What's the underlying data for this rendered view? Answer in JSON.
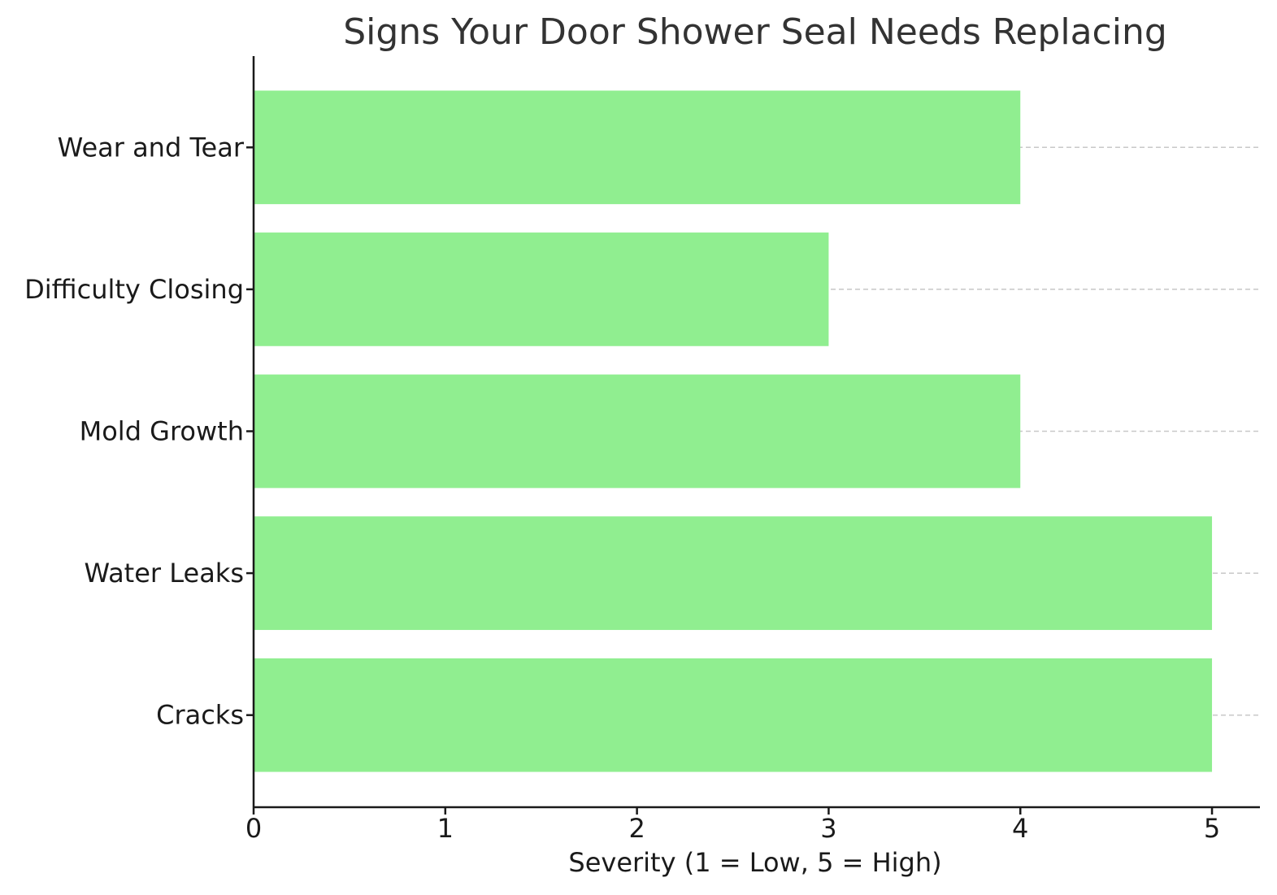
{
  "chart_data": {
    "type": "bar",
    "orientation": "horizontal",
    "title": "Signs Your Door Shower Seal Needs Replacing",
    "xlabel": "Severity (1 = Low, 5 = High)",
    "ylabel": "",
    "categories": [
      "Cracks",
      "Water Leaks",
      "Mold Growth",
      "Difficulty Closing",
      "Wear and Tear"
    ],
    "values": [
      5,
      5,
      4,
      3,
      4
    ],
    "xlim": [
      0,
      5.25
    ],
    "xticks": [
      "0",
      "1",
      "2",
      "3",
      "4",
      "5"
    ],
    "grid": "y-dashed",
    "colors": {
      "bar": "#90ee90"
    }
  }
}
